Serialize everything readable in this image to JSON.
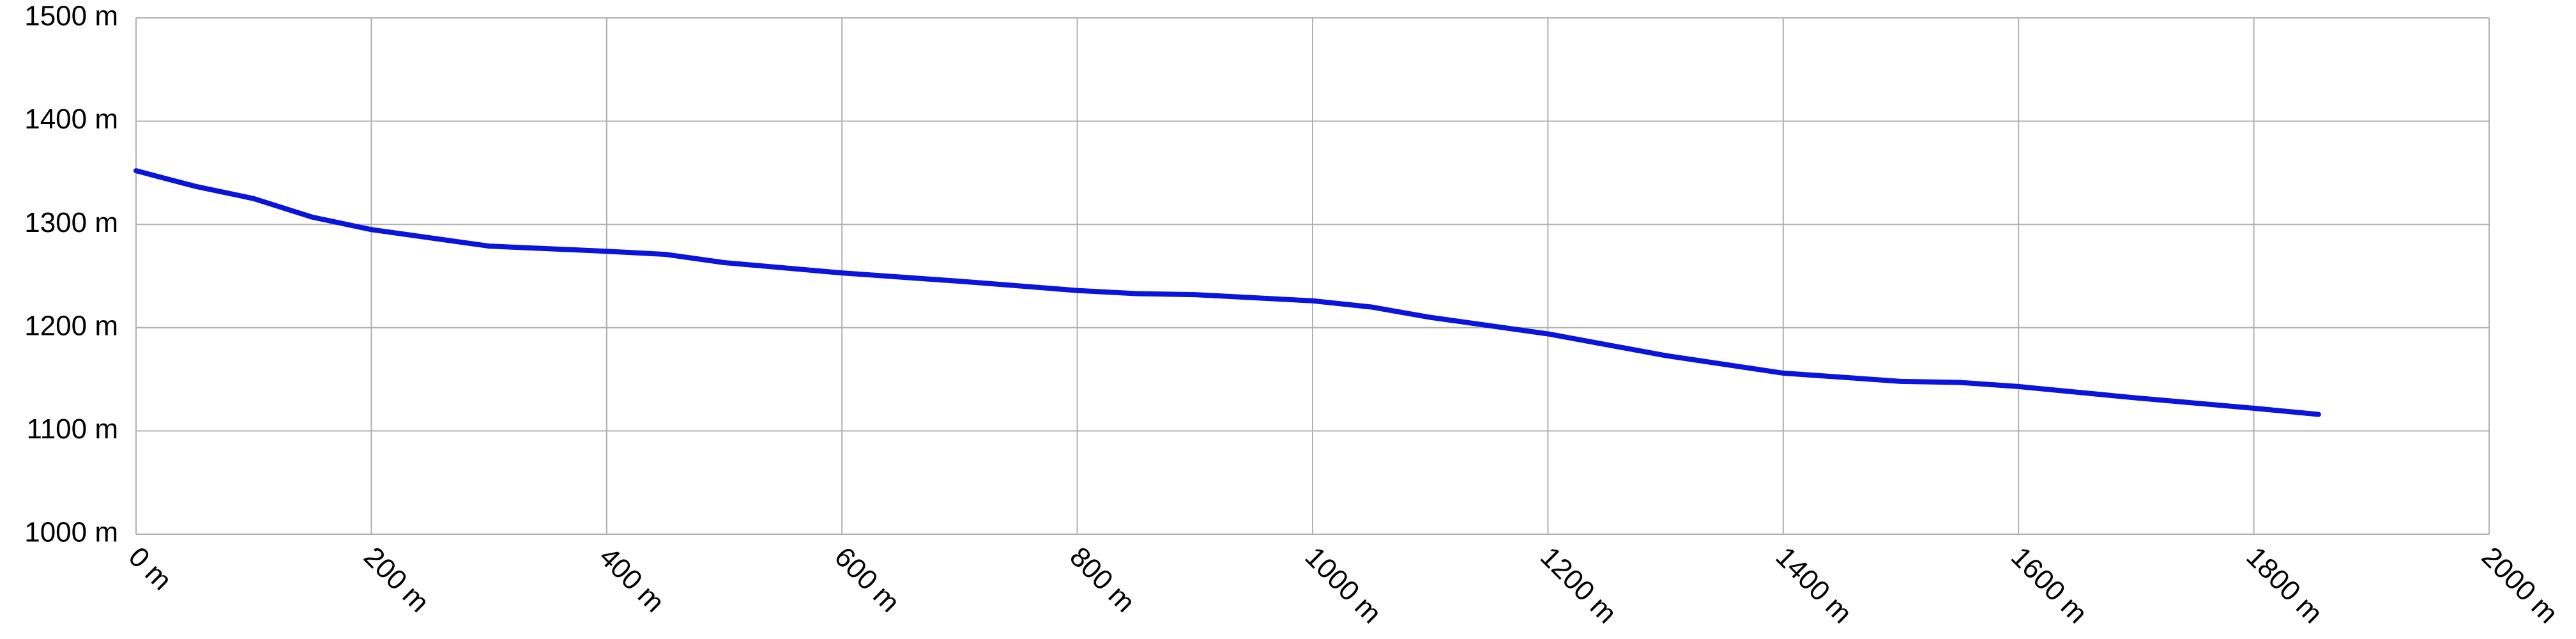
{
  "chart_data": {
    "type": "line",
    "x": [
      0,
      50,
      100,
      150,
      200,
      300,
      400,
      450,
      500,
      600,
      700,
      800,
      850,
      900,
      1000,
      1050,
      1100,
      1200,
      1300,
      1400,
      1500,
      1550,
      1600,
      1700,
      1800,
      1855
    ],
    "series": [
      {
        "color": "#0a14dc",
        "values": [
          1352,
          1337,
          1325,
          1307,
          1295,
          1279,
          1274,
          1271,
          1263,
          1253,
          1245,
          1236,
          1233,
          1232,
          1226,
          1220,
          1210,
          1194,
          1173,
          1156,
          1148,
          1147,
          1143,
          1132,
          1122,
          1116
        ]
      }
    ],
    "xlim": [
      0,
      2000
    ],
    "xticks": [
      {
        "value": 0,
        "label": "0 m"
      },
      {
        "value": 200,
        "label": "200 m"
      },
      {
        "value": 400,
        "label": "400 m"
      },
      {
        "value": 600,
        "label": "600 m"
      },
      {
        "value": 800,
        "label": "800 m"
      },
      {
        "value": 1000,
        "label": "1000 m"
      },
      {
        "value": 1200,
        "label": "1200 m"
      },
      {
        "value": 1400,
        "label": "1400 m"
      },
      {
        "value": 1600,
        "label": "1600 m"
      },
      {
        "value": 1800,
        "label": "1800 m"
      },
      {
        "value": 2000,
        "label": "2000 m"
      }
    ],
    "ylim": [
      1000,
      1500
    ],
    "yticks": [
      {
        "value": 1000,
        "label": "1000 m"
      },
      {
        "value": 1100,
        "label": "1100 m"
      },
      {
        "value": 1200,
        "label": "1200 m"
      },
      {
        "value": 1300,
        "label": "1300 m"
      },
      {
        "value": 1400,
        "label": "1400 m"
      },
      {
        "value": 1500,
        "label": "1500 m"
      }
    ],
    "grid": true
  }
}
